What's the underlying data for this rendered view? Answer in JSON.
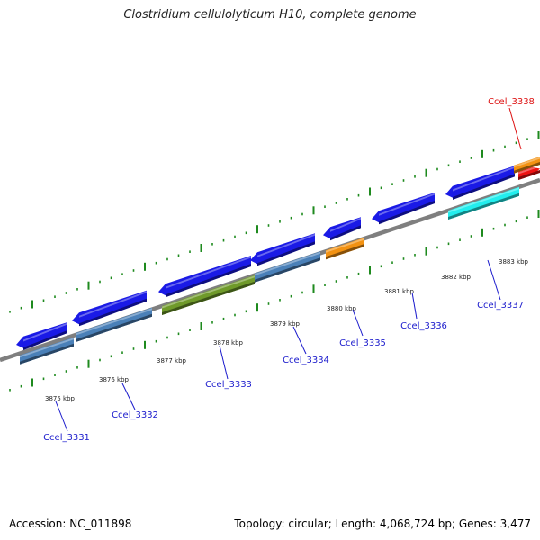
{
  "title": "Clostridium cellulolyticum H10, complete genome",
  "footer": {
    "accession": "Accession: NC_011898",
    "topology": "Topology: circular; Length: 4,068,724 bp; Genes: 3,477"
  },
  "colors": {
    "genome_line": "#7f7f7f",
    "ticks": "#1e8a1e",
    "label_blue": "#1a1acc",
    "label_red": "#dd1111",
    "blue": "#1a1ae6",
    "steelblue": "#4a80b8",
    "olive": "#6f9a2a",
    "orange": "#f39212",
    "red": "#ee1111",
    "cyan": "#22eeee"
  },
  "ticks": [
    {
      "label": "3875 kbp"
    },
    {
      "label": "3876 kbp"
    },
    {
      "label": "3877 kbp"
    },
    {
      "label": "3878 kbp"
    },
    {
      "label": "3879 kbp"
    },
    {
      "label": "3880 kbp"
    },
    {
      "label": "3881 kbp"
    },
    {
      "label": "3882 kbp"
    },
    {
      "label": "3883 kbp"
    }
  ],
  "genes": [
    {
      "name": "Ccel_3331"
    },
    {
      "name": "Ccel_3332"
    },
    {
      "name": "Ccel_3333"
    },
    {
      "name": "Ccel_3334"
    },
    {
      "name": "Ccel_3335"
    },
    {
      "name": "Ccel_3336"
    },
    {
      "name": "Ccel_3337"
    },
    {
      "name": "Ccel_3338"
    }
  ]
}
